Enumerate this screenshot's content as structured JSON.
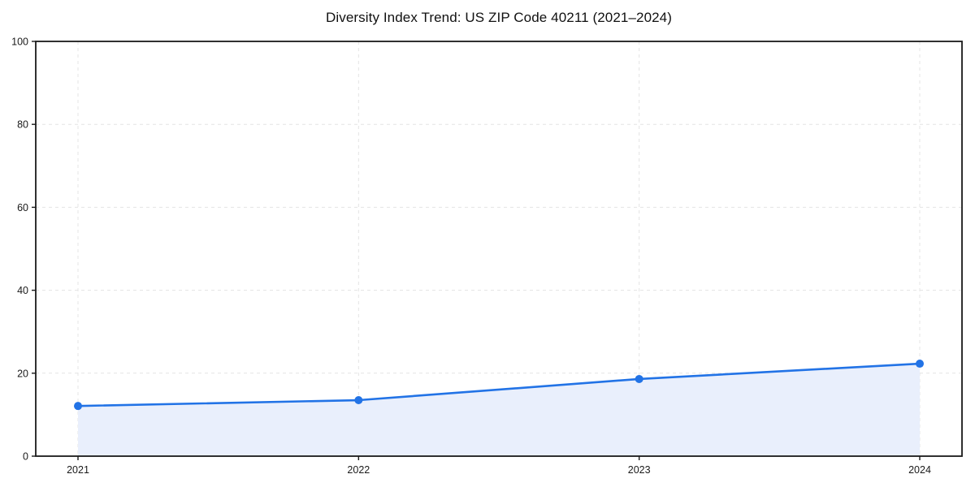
{
  "chart_data": {
    "type": "area",
    "title": "Diversity Index Trend: US ZIP Code 40211 (2021–2024)",
    "categories": [
      "2021",
      "2022",
      "2023",
      "2024"
    ],
    "series": [
      {
        "name": "Diversity Index",
        "values": [
          12.1,
          13.5,
          18.6,
          22.3
        ]
      }
    ],
    "xlabel": "",
    "ylabel": "",
    "ylim": [
      0,
      100
    ],
    "yticks": [
      0,
      20,
      40,
      60,
      80,
      100
    ],
    "grid": "dashed, light gray, horizontal and vertical",
    "legend": "none",
    "colors": {
      "line": "#2273e6",
      "marker": "#2273e6",
      "fill": "#e9effc",
      "gridline": "#e4e4e4",
      "frame": "#1a1a1a",
      "title_text": "#111111",
      "tick_text": "#1a1a1a",
      "background": "#ffffff"
    }
  }
}
